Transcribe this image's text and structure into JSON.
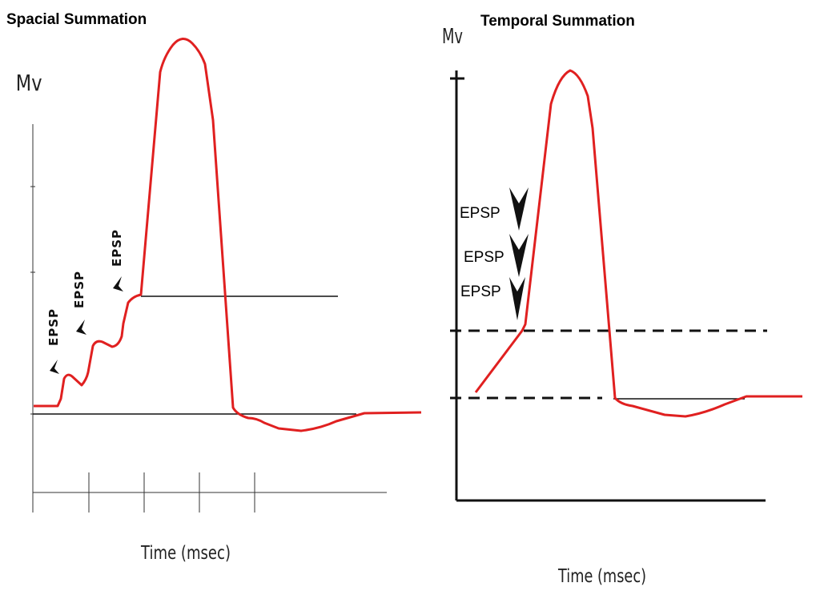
{
  "left_title": "Spacial Summation",
  "right_title": "Temporal Summation",
  "chart_data": [
    {
      "type": "line",
      "title": "Spacial Summation",
      "ylabel": "Mv",
      "xlabel": "Time (msec)",
      "annotations": [
        "EPSP",
        "EPSP",
        "EPSP"
      ],
      "series": [
        {
          "color": "#e02020",
          "points": [
            [
              0,
              0
            ],
            [
              1,
              0
            ],
            [
              1,
              1.5
            ],
            [
              1.5,
              1.2
            ],
            [
              2,
              1.2
            ],
            [
              2,
              3.2
            ],
            [
              2.5,
              3
            ],
            [
              3,
              3.2
            ],
            [
              3,
              5
            ],
            [
              3.5,
              5
            ],
            [
              5,
              18
            ],
            [
              5.5,
              19
            ],
            [
              6,
              18
            ],
            [
              7,
              0
            ],
            [
              8,
              -1.2
            ],
            [
              9,
              -1
            ],
            [
              10,
              0
            ],
            [
              12,
              0
            ]
          ]
        }
      ],
      "reference_lines": [
        "threshold",
        "resting potential"
      ]
    },
    {
      "type": "line",
      "title": "Temporal Summation",
      "ylabel": "Mv",
      "xlabel": "Time (msec)",
      "annotations": [
        "EPSP",
        "EPSP",
        "EPSP"
      ],
      "series": [
        {
          "color": "#e02020",
          "points": [
            [
              0,
              -0.3
            ],
            [
              1.2,
              3
            ],
            [
              2,
              13
            ],
            [
              2.5,
              14
            ],
            [
              3,
              13
            ],
            [
              3.6,
              0
            ],
            [
              4.5,
              -1
            ],
            [
              5.5,
              -0.6
            ],
            [
              6.5,
              0
            ],
            [
              8,
              0
            ]
          ]
        }
      ],
      "reference_lines": [
        "threshold",
        "resting potential"
      ]
    }
  ]
}
